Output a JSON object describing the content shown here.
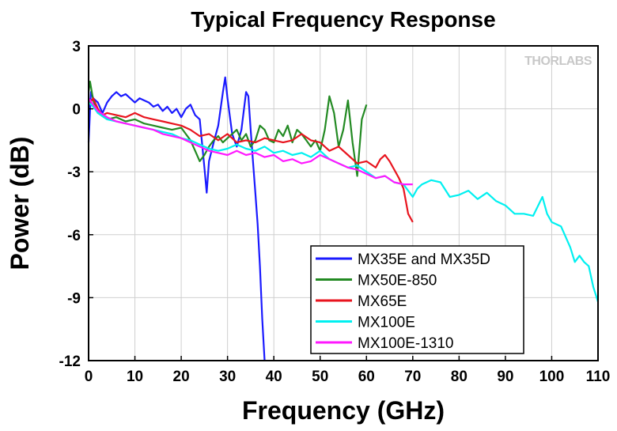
{
  "chart_data": {
    "type": "line",
    "title": "Typical Frequency Response",
    "xlabel": "Frequency (GHz)",
    "ylabel": "Power (dB)",
    "xlim": [
      0,
      110
    ],
    "ylim": [
      -12,
      3
    ],
    "xticks": [
      0,
      10,
      20,
      30,
      40,
      50,
      60,
      70,
      80,
      90,
      100,
      110
    ],
    "yticks": [
      3,
      0,
      -3,
      -6,
      -9,
      -12
    ],
    "grid": true,
    "legend_position": "bottom-right",
    "watermark": "THORLABS",
    "series": [
      {
        "name": "MX35E and MX35D",
        "color": "#1a1aff",
        "points": [
          [
            0,
            -1.6
          ],
          [
            0.5,
            0.8
          ],
          [
            1,
            0.5
          ],
          [
            2,
            0.3
          ],
          [
            3,
            -0.2
          ],
          [
            4,
            0.3
          ],
          [
            5,
            0.6
          ],
          [
            6,
            0.8
          ],
          [
            7,
            0.6
          ],
          [
            8,
            0.7
          ],
          [
            9,
            0.5
          ],
          [
            10,
            0.3
          ],
          [
            11,
            0.5
          ],
          [
            12,
            0.4
          ],
          [
            13,
            0.3
          ],
          [
            14,
            0.1
          ],
          [
            15,
            0.2
          ],
          [
            16,
            -0.1
          ],
          [
            17,
            0.1
          ],
          [
            18,
            -0.2
          ],
          [
            19,
            0.0
          ],
          [
            20,
            -0.4
          ],
          [
            21,
            0.0
          ],
          [
            22,
            0.2
          ],
          [
            23,
            -0.3
          ],
          [
            24,
            -0.5
          ],
          [
            25,
            -2.8
          ],
          [
            25.5,
            -4.0
          ],
          [
            26,
            -2.5
          ],
          [
            27,
            -1.6
          ],
          [
            28,
            -0.8
          ],
          [
            29,
            0.8
          ],
          [
            29.5,
            1.5
          ],
          [
            30,
            0.5
          ],
          [
            31,
            -1.2
          ],
          [
            32,
            -1.8
          ],
          [
            33,
            -1.0
          ],
          [
            34,
            0.8
          ],
          [
            34.5,
            0.6
          ],
          [
            35,
            -1.0
          ],
          [
            35.5,
            -2.5
          ],
          [
            36,
            -4.0
          ],
          [
            36.5,
            -5.5
          ],
          [
            37,
            -7.5
          ],
          [
            37.5,
            -10.0
          ],
          [
            38,
            -12.0
          ]
        ]
      },
      {
        "name": "MX50E-850",
        "color": "#238a23",
        "points": [
          [
            0,
            0.8
          ],
          [
            0.3,
            1.3
          ],
          [
            1,
            0.4
          ],
          [
            2,
            -0.2
          ],
          [
            4,
            -0.5
          ],
          [
            6,
            -0.4
          ],
          [
            8,
            -0.6
          ],
          [
            10,
            -0.5
          ],
          [
            12,
            -0.7
          ],
          [
            14,
            -0.8
          ],
          [
            16,
            -0.9
          ],
          [
            18,
            -1.0
          ],
          [
            20,
            -0.9
          ],
          [
            21,
            -1.2
          ],
          [
            22,
            -1.5
          ],
          [
            23,
            -2.0
          ],
          [
            24,
            -2.5
          ],
          [
            25,
            -2.2
          ],
          [
            26,
            -1.8
          ],
          [
            27,
            -1.5
          ],
          [
            28,
            -1.3
          ],
          [
            29,
            -1.6
          ],
          [
            30,
            -1.4
          ],
          [
            31,
            -1.2
          ],
          [
            32,
            -1.0
          ],
          [
            33,
            -1.5
          ],
          [
            34,
            -1.2
          ],
          [
            35,
            -1.8
          ],
          [
            36,
            -1.5
          ],
          [
            37,
            -0.8
          ],
          [
            38,
            -1.0
          ],
          [
            39,
            -1.5
          ],
          [
            40,
            -1.6
          ],
          [
            41,
            -1.0
          ],
          [
            42,
            -1.3
          ],
          [
            43,
            -0.8
          ],
          [
            44,
            -1.6
          ],
          [
            45,
            -1.0
          ],
          [
            46,
            -1.2
          ],
          [
            47,
            -1.5
          ],
          [
            48,
            -1.8
          ],
          [
            49,
            -1.5
          ],
          [
            50,
            -2.0
          ],
          [
            51,
            -1.0
          ],
          [
            52,
            0.6
          ],
          [
            53,
            -0.2
          ],
          [
            54,
            -1.8
          ],
          [
            55,
            -1.0
          ],
          [
            56,
            0.4
          ],
          [
            57,
            -1.6
          ],
          [
            58,
            -3.2
          ],
          [
            59,
            -0.5
          ],
          [
            60,
            0.2
          ]
        ]
      },
      {
        "name": "MX65E",
        "color": "#e8141e",
        "points": [
          [
            0,
            0.2
          ],
          [
            1,
            0.5
          ],
          [
            2,
            0.0
          ],
          [
            3,
            -0.3
          ],
          [
            4,
            -0.2
          ],
          [
            6,
            -0.3
          ],
          [
            8,
            -0.4
          ],
          [
            10,
            -0.2
          ],
          [
            12,
            -0.4
          ],
          [
            14,
            -0.5
          ],
          [
            16,
            -0.6
          ],
          [
            18,
            -0.7
          ],
          [
            20,
            -0.8
          ],
          [
            22,
            -1.0
          ],
          [
            24,
            -1.3
          ],
          [
            26,
            -1.2
          ],
          [
            28,
            -1.5
          ],
          [
            30,
            -1.2
          ],
          [
            32,
            -1.6
          ],
          [
            34,
            -1.5
          ],
          [
            36,
            -1.6
          ],
          [
            38,
            -1.4
          ],
          [
            40,
            -1.5
          ],
          [
            42,
            -1.6
          ],
          [
            44,
            -1.5
          ],
          [
            46,
            -1.2
          ],
          [
            48,
            -1.5
          ],
          [
            50,
            -1.6
          ],
          [
            52,
            -2.0
          ],
          [
            54,
            -1.8
          ],
          [
            56,
            -2.2
          ],
          [
            58,
            -2.6
          ],
          [
            60,
            -2.5
          ],
          [
            62,
            -2.8
          ],
          [
            63,
            -2.4
          ],
          [
            64,
            -2.2
          ],
          [
            65,
            -2.5
          ],
          [
            66,
            -2.9
          ],
          [
            67,
            -3.3
          ],
          [
            68,
            -3.8
          ],
          [
            69,
            -5.0
          ],
          [
            70,
            -5.4
          ]
        ]
      },
      {
        "name": "MX100E",
        "color": "#00f0f0",
        "points": [
          [
            0,
            0.3
          ],
          [
            1,
            0.1
          ],
          [
            2,
            -0.2
          ],
          [
            4,
            -0.5
          ],
          [
            6,
            -0.6
          ],
          [
            8,
            -0.7
          ],
          [
            10,
            -0.8
          ],
          [
            12,
            -0.9
          ],
          [
            14,
            -1.0
          ],
          [
            16,
            -1.1
          ],
          [
            18,
            -1.2
          ],
          [
            20,
            -1.4
          ],
          [
            22,
            -1.5
          ],
          [
            24,
            -1.7
          ],
          [
            26,
            -1.9
          ],
          [
            28,
            -2.0
          ],
          [
            30,
            -1.9
          ],
          [
            32,
            -1.7
          ],
          [
            34,
            -1.9
          ],
          [
            36,
            -2.0
          ],
          [
            38,
            -1.8
          ],
          [
            40,
            -2.1
          ],
          [
            42,
            -2.0
          ],
          [
            44,
            -2.2
          ],
          [
            46,
            -2.1
          ],
          [
            48,
            -2.3
          ],
          [
            50,
            -2.0
          ],
          [
            52,
            -2.4
          ],
          [
            54,
            -2.6
          ],
          [
            56,
            -2.8
          ],
          [
            58,
            -2.7
          ],
          [
            60,
            -3.0
          ],
          [
            62,
            -3.3
          ],
          [
            64,
            -3.2
          ],
          [
            66,
            -3.5
          ],
          [
            68,
            -3.6
          ],
          [
            70,
            -4.2
          ],
          [
            71,
            -3.8
          ],
          [
            72,
            -3.6
          ],
          [
            74,
            -3.4
          ],
          [
            76,
            -3.5
          ],
          [
            78,
            -4.2
          ],
          [
            80,
            -4.1
          ],
          [
            82,
            -3.9
          ],
          [
            84,
            -4.3
          ],
          [
            86,
            -4.0
          ],
          [
            88,
            -4.4
          ],
          [
            90,
            -4.6
          ],
          [
            92,
            -5.0
          ],
          [
            94,
            -5.0
          ],
          [
            96,
            -5.1
          ],
          [
            98,
            -4.2
          ],
          [
            99,
            -5.0
          ],
          [
            100,
            -5.4
          ],
          [
            102,
            -5.6
          ],
          [
            104,
            -6.6
          ],
          [
            105,
            -7.3
          ],
          [
            106,
            -7.0
          ],
          [
            107,
            -7.3
          ],
          [
            108,
            -7.5
          ],
          [
            109,
            -8.5
          ],
          [
            110,
            -9.2
          ]
        ]
      },
      {
        "name": "MX100E-1310",
        "color": "#ff18ff",
        "points": [
          [
            0,
            0.5
          ],
          [
            1,
            0.2
          ],
          [
            2,
            -0.1
          ],
          [
            4,
            -0.4
          ],
          [
            6,
            -0.6
          ],
          [
            8,
            -0.7
          ],
          [
            10,
            -0.8
          ],
          [
            12,
            -0.9
          ],
          [
            14,
            -1.0
          ],
          [
            16,
            -1.2
          ],
          [
            18,
            -1.3
          ],
          [
            20,
            -1.4
          ],
          [
            22,
            -1.6
          ],
          [
            24,
            -1.8
          ],
          [
            26,
            -2.0
          ],
          [
            28,
            -2.1
          ],
          [
            30,
            -2.2
          ],
          [
            32,
            -2.0
          ],
          [
            34,
            -2.2
          ],
          [
            36,
            -2.1
          ],
          [
            38,
            -2.3
          ],
          [
            40,
            -2.2
          ],
          [
            42,
            -2.5
          ],
          [
            44,
            -2.4
          ],
          [
            46,
            -2.6
          ],
          [
            48,
            -2.5
          ],
          [
            50,
            -2.2
          ],
          [
            52,
            -2.4
          ],
          [
            54,
            -2.6
          ],
          [
            56,
            -2.8
          ],
          [
            58,
            -2.9
          ],
          [
            60,
            -3.1
          ],
          [
            62,
            -3.3
          ],
          [
            64,
            -3.2
          ],
          [
            66,
            -3.5
          ],
          [
            68,
            -3.6
          ],
          [
            70,
            -3.6
          ]
        ]
      }
    ]
  }
}
